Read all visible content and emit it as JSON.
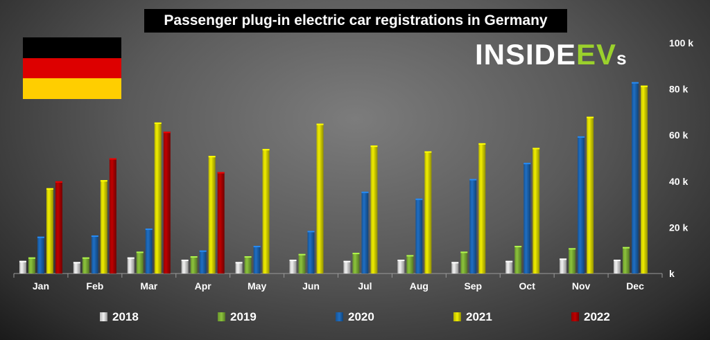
{
  "title": "Passenger plug-in electric car registrations in Germany",
  "logo": {
    "part1": "INSIDE",
    "part2": "EV",
    "part3": "s"
  },
  "flag_colors": [
    "#000000",
    "#dd0000",
    "#ffce00"
  ],
  "colors": {
    "2018": "#f2f2f2",
    "2019": "#8cc43c",
    "2020": "#1f6fc4",
    "2021": "#f2ef00",
    "2022": "#c00000",
    "accent": "#9bd12c"
  },
  "chart_data": {
    "type": "bar",
    "categories": [
      "Jan",
      "Feb",
      "Mar",
      "Apr",
      "May",
      "Jun",
      "Jul",
      "Aug",
      "Sep",
      "Oct",
      "Nov",
      "Dec"
    ],
    "series": [
      {
        "name": "2018",
        "values": [
          5.5,
          5.0,
          7.0,
          6.0,
          5.0,
          6.0,
          5.5,
          6.0,
          5.0,
          5.5,
          6.5,
          6.0
        ]
      },
      {
        "name": "2019",
        "values": [
          7.0,
          7.0,
          9.5,
          7.5,
          7.5,
          8.5,
          9.0,
          8.0,
          9.5,
          12.0,
          11.0,
          11.5
        ]
      },
      {
        "name": "2020",
        "values": [
          16.0,
          16.5,
          19.5,
          10.0,
          12.0,
          18.5,
          35.5,
          32.5,
          41.0,
          48.0,
          59.5,
          83.0
        ]
      },
      {
        "name": "2021",
        "values": [
          37.0,
          40.5,
          65.5,
          51.0,
          54.0,
          65.0,
          55.5,
          53.0,
          56.5,
          54.5,
          68.0,
          81.5
        ]
      },
      {
        "name": "2022",
        "values": [
          40.0,
          50.0,
          61.5,
          44.0,
          null,
          null,
          null,
          null,
          null,
          null,
          null,
          null
        ]
      }
    ],
    "y_ticks": [
      "k",
      "20 k",
      "40 k",
      "60 k",
      "80 k",
      "100 k"
    ],
    "ylim": [
      0,
      100
    ],
    "grid": false,
    "legend_position": "bottom"
  }
}
